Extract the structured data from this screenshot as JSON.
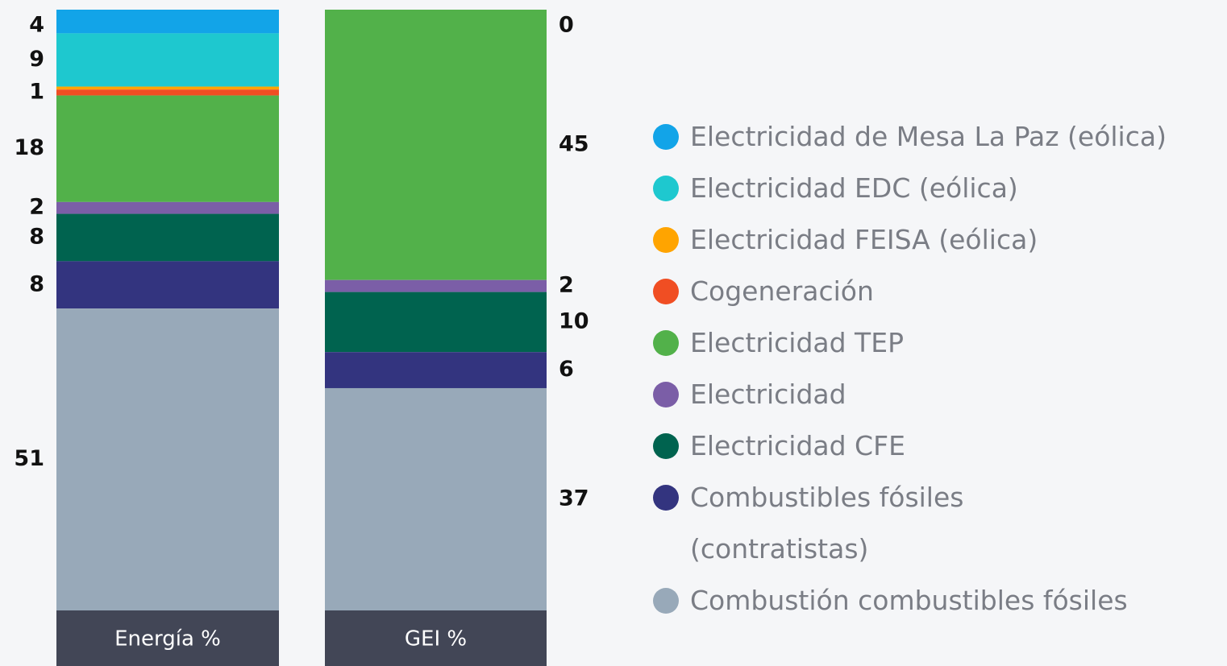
{
  "chart_data": {
    "type": "stacked-bar",
    "categories": [
      "Energía %",
      "GEI %"
    ],
    "series": [
      {
        "name": "Electricidad de Mesa La Paz (eólica)",
        "color": "#12a4e8",
        "values": [
          4,
          0
        ],
        "value_labels": [
          "4",
          "0"
        ]
      },
      {
        "name": "Electricidad EDC (eólica)",
        "color": "#1ec8cf",
        "values": [
          9,
          0
        ],
        "value_labels": [
          "9",
          null
        ]
      },
      {
        "name": "Electricidad FEISA (eólica)",
        "color": "#ffa400",
        "values": [
          0.5,
          0
        ],
        "value_labels": [
          null,
          null
        ]
      },
      {
        "name": "Cogeneración",
        "color": "#f04e23",
        "values": [
          1,
          0
        ],
        "value_labels": [
          "1",
          null
        ]
      },
      {
        "name": "Electricidad TEP",
        "color": "#52b14a",
        "values": [
          18,
          45
        ],
        "value_labels": [
          "18",
          "45"
        ]
      },
      {
        "name": "Electricidad",
        "color": "#7b5ea7",
        "values": [
          2,
          2
        ],
        "value_labels": [
          "2",
          "2"
        ]
      },
      {
        "name": "Electricidad CFE",
        "color": "#00634f",
        "values": [
          8,
          10
        ],
        "value_labels": [
          "8",
          "10"
        ]
      },
      {
        "name": "Combustibles fósiles (contratistas)",
        "color": "#33347f",
        "values": [
          8,
          6
        ],
        "value_labels": [
          "8",
          "6"
        ]
      },
      {
        "name": "Combustión combustibles fósiles",
        "color": "#98a9b9",
        "values": [
          51,
          37
        ],
        "value_labels": [
          "51",
          "37"
        ]
      }
    ]
  }
}
